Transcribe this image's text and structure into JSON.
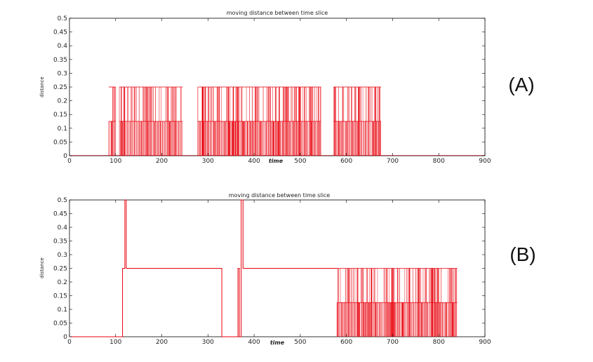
{
  "chart_data": [
    {
      "type": "line",
      "label": "(A)",
      "title": "moving distance between time slice",
      "xlabel": "time",
      "ylabel": "distance",
      "xlim": [
        0,
        900
      ],
      "ylim": [
        0,
        0.5
      ],
      "xticks": [
        0,
        100,
        200,
        300,
        400,
        500,
        600,
        700,
        800,
        900
      ],
      "yticks": [
        0,
        0.05,
        0.1,
        0.15,
        0.2,
        0.25,
        0.3,
        0.35,
        0.4,
        0.45,
        0.5
      ],
      "ytick_labels": [
        "0",
        "0.05",
        "0.1",
        "0.15",
        "0.2",
        "0.25",
        "0.3",
        "0.35",
        "0.4",
        "0.45",
        "0.5"
      ],
      "color": "#e8000b",
      "grid": false,
      "segments": [
        {
          "x_start": 85,
          "x_end": 100,
          "low": 0.125,
          "high": 0.25
        },
        {
          "x_start": 100,
          "x_end": 108,
          "low": 0,
          "high": 0
        },
        {
          "x_start": 108,
          "x_end": 240,
          "low": 0.125,
          "high": 0.25
        },
        {
          "x_start": 240,
          "x_end": 275,
          "low": 0,
          "high": 0.25
        },
        {
          "x_start": 278,
          "x_end": 545,
          "low": 0.125,
          "high": 0.25
        },
        {
          "x_start": 545,
          "x_end": 570,
          "low": 0,
          "high": 0
        },
        {
          "x_start": 572,
          "x_end": 675,
          "low": 0.125,
          "high": 0.25
        }
      ],
      "dense_ranges": [
        [
          85,
          100
        ],
        [
          108,
          245
        ],
        [
          278,
          545
        ],
        [
          572,
          675
        ]
      ]
    },
    {
      "type": "line",
      "label": "(B)",
      "title": "moving distance between time slice",
      "xlabel": "time",
      "ylabel": "distance",
      "xlim": [
        0,
        900
      ],
      "ylim": [
        0,
        0.5
      ],
      "xticks": [
        0,
        100,
        200,
        300,
        400,
        500,
        600,
        700,
        800,
        900
      ],
      "yticks": [
        0,
        0.05,
        0.1,
        0.15,
        0.2,
        0.25,
        0.3,
        0.35,
        0.4,
        0.45,
        0.5
      ],
      "ytick_labels": [
        "0",
        "0.05",
        "0.1",
        "0.15",
        "0.2",
        "0.25",
        "0.3",
        "0.35",
        "0.4",
        "0.45",
        "0.5"
      ],
      "color": "#e8000b",
      "grid": false,
      "polyline": [
        [
          0,
          0
        ],
        [
          115,
          0
        ],
        [
          115,
          0.25
        ],
        [
          120,
          0.25
        ],
        [
          120,
          0.5
        ],
        [
          123,
          0.5
        ],
        [
          123,
          0.25
        ],
        [
          330,
          0.25
        ],
        [
          330,
          0
        ],
        [
          365,
          0
        ],
        [
          365,
          0.25
        ],
        [
          368,
          0.25
        ],
        [
          368,
          0
        ],
        [
          372,
          0
        ],
        [
          372,
          0.5
        ],
        [
          376,
          0.5
        ],
        [
          376,
          0.25
        ],
        [
          580,
          0.25
        ]
      ],
      "dense_ranges": [
        [
          580,
          840
        ]
      ],
      "dense_low": 0.125,
      "dense_high": 0.25
    }
  ]
}
